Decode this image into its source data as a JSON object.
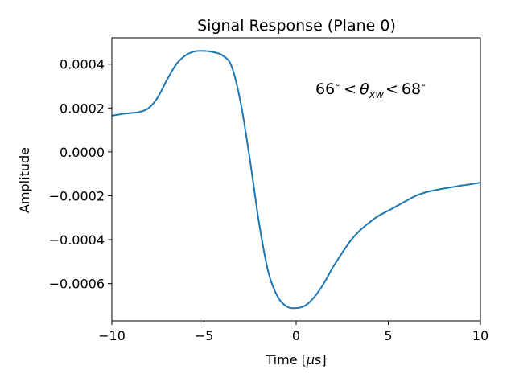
{
  "chart_data": {
    "type": "line",
    "title": "Signal Response (Plane 0)",
    "xlabel_main": "Time [",
    "xlabel_mu": "μ",
    "xlabel_tail": "s]",
    "ylabel": "Amplitude",
    "xlim": [
      -10,
      10
    ],
    "ylim": [
      -0.00077,
      0.00052
    ],
    "xticks": [
      -10,
      -5,
      0,
      5,
      10
    ],
    "xtick_labels": [
      "−10",
      "−5",
      "0",
      "5",
      "10"
    ],
    "yticks": [
      0.0004,
      0.0002,
      0.0,
      -0.0002,
      -0.0004,
      -0.0006
    ],
    "ytick_labels": [
      "0.0004",
      "0.0002",
      "0.0000",
      "−0.0002",
      "−0.0004",
      "−0.0006"
    ],
    "grid": false,
    "line_color": "#1f77b4",
    "annotation": {
      "lead": "66",
      "deg1": "∘",
      "lt1": "<",
      "theta": "θ",
      "sub": "xw",
      "lt2": "<",
      "trail": "68",
      "deg2": "∘"
    },
    "series": [
      {
        "x": [
          -10,
          -9.5,
          -9,
          -8.5,
          -8,
          -7.5,
          -7,
          -6.5,
          -6,
          -5.5,
          -5,
          -4.5,
          -4,
          -3.5,
          -3,
          -2.5,
          -2,
          -1.5,
          -1,
          -0.5,
          0,
          0.5,
          1,
          1.5,
          2,
          2.5,
          3,
          3.5,
          4,
          4.5,
          5,
          5.5,
          6,
          6.5,
          7,
          7.5,
          8,
          8.5,
          9,
          9.5,
          10
        ],
        "y": [
          0.000165,
          0.000172,
          0.000177,
          0.000182,
          0.0002,
          0.00025,
          0.00033,
          0.0004,
          0.00044,
          0.000458,
          0.00046,
          0.000455,
          0.00044,
          0.00039,
          0.00022,
          -4e-05,
          -0.00033,
          -0.00055,
          -0.00066,
          -0.000705,
          -0.000712,
          -0.0007,
          -0.00066,
          -0.0006,
          -0.000525,
          -0.00046,
          -0.0004,
          -0.000355,
          -0.00032,
          -0.00029,
          -0.000268,
          -0.000245,
          -0.000222,
          -0.0002,
          -0.000185,
          -0.000175,
          -0.000167,
          -0.00016,
          -0.000153,
          -0.000147,
          -0.00014
        ]
      }
    ]
  }
}
